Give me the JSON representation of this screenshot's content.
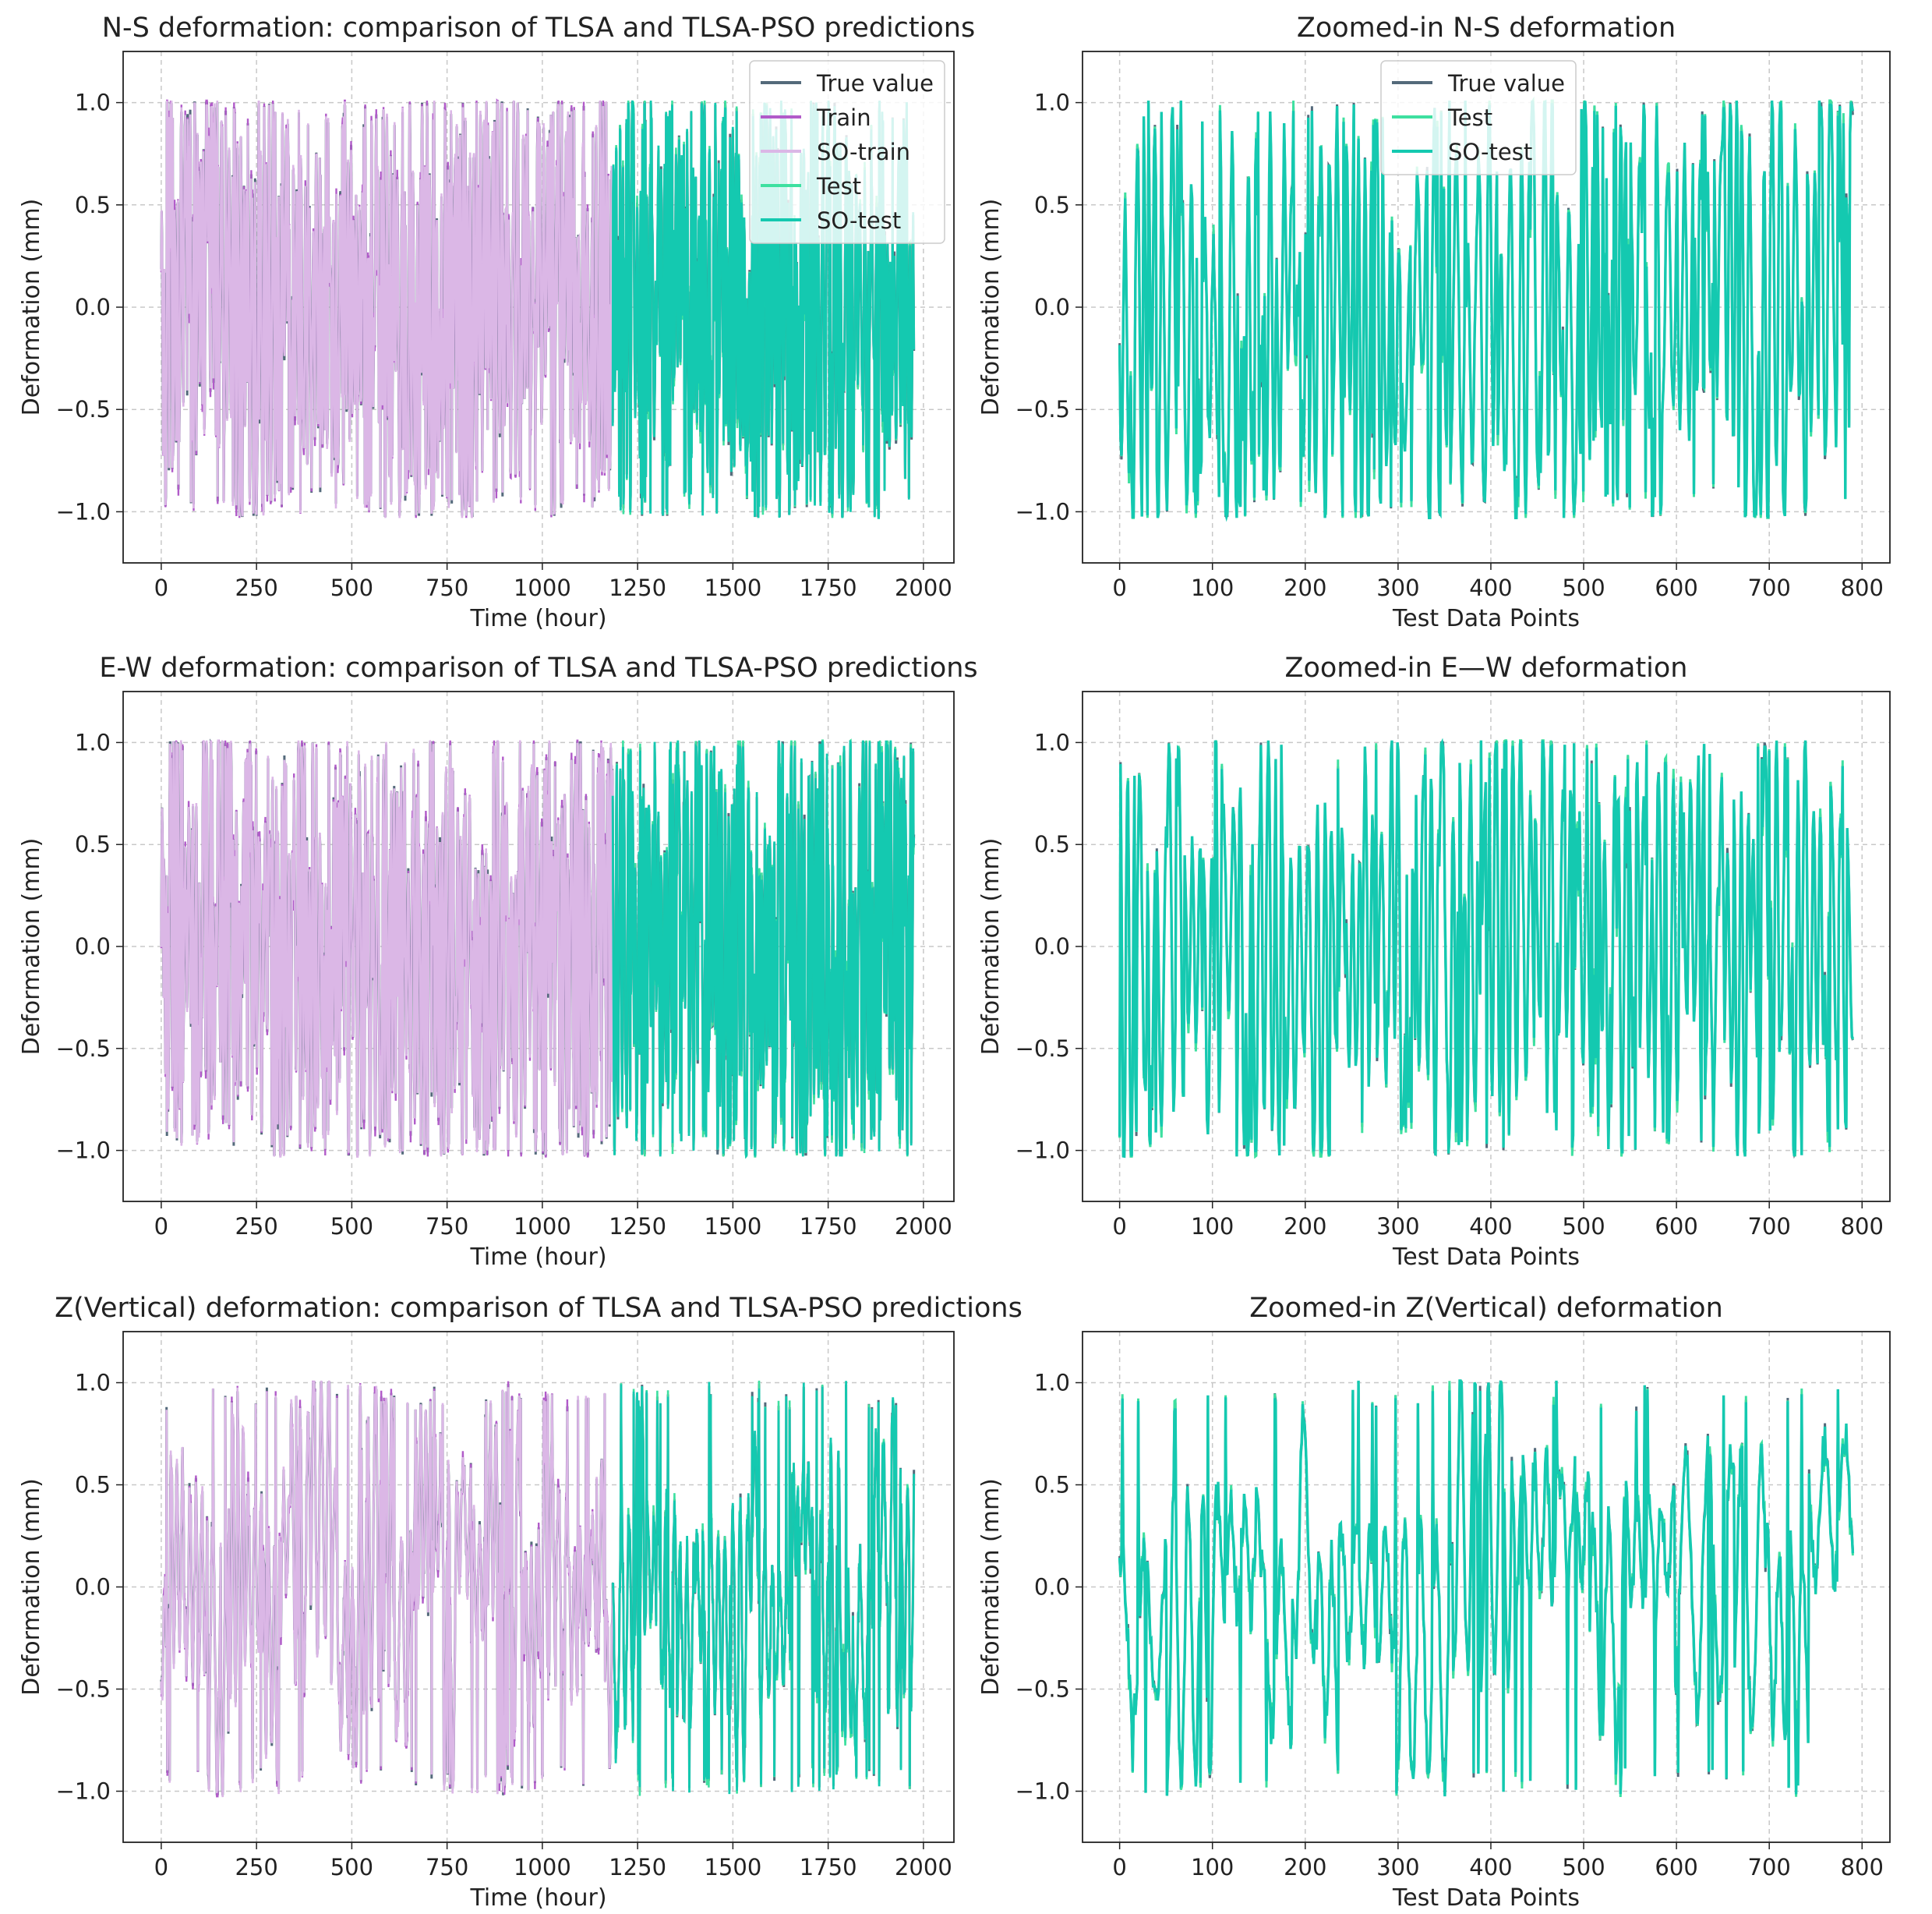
{
  "figure": {
    "description_note": "",
    "colors": {
      "true_value": "#546a7b",
      "train": "#b15bc9",
      "so_train": "#dbb7e6",
      "test": "#3ee0a0",
      "so_test": "#14c9b0",
      "grid": "#c8c8c8",
      "frame": "#222222"
    }
  },
  "chart_data": [
    {
      "type": "line",
      "title": "N-S deformation: comparison of TLSA and TLSA-PSO predictions",
      "xlabel": "Time (hour)",
      "ylabel": "Deformation (mm)",
      "xlim": [
        -100,
        2080
      ],
      "ylim": [
        -1.25,
        1.25
      ],
      "xticks": [
        0,
        250,
        500,
        750,
        1000,
        1250,
        1500,
        1750,
        2000
      ],
      "xtick_labels": [
        "0",
        "250",
        "500",
        "750",
        "1000",
        "1250",
        "1500",
        "1750",
        "2000"
      ],
      "yticks": [
        1.0,
        0.5,
        0.0,
        -0.5,
        -1.0
      ],
      "ytick_labels": [
        "1.0",
        "0.5",
        "0.0",
        "−0.5",
        "−1.0"
      ],
      "grid": true,
      "legend": {
        "placement": "top-right",
        "entries": [
          "True value",
          "Train",
          "SO-train",
          "Test",
          "SO-test"
        ]
      },
      "x_range": [
        0,
        1975
      ],
      "train_end": 1185,
      "n_points": 1975,
      "series_note": "Normalized hourly deformation oscillating between -1.0 and 1.0; Train/SO-train over 0-1185, Test/SO-test over 1185-1975",
      "seed": 11,
      "style": "ns"
    },
    {
      "type": "line",
      "title": "Zoomed-in N-S deformation",
      "xlabel": "Test Data Points",
      "ylabel": "Deformation (mm)",
      "xlim": [
        -40,
        830
      ],
      "ylim": [
        -1.25,
        1.25
      ],
      "xticks": [
        0,
        100,
        200,
        300,
        400,
        500,
        600,
        700,
        800
      ],
      "xtick_labels": [
        "0",
        "100",
        "200",
        "300",
        "400",
        "500",
        "600",
        "700",
        "800"
      ],
      "yticks": [
        1.0,
        0.5,
        0.0,
        -0.5,
        -1.0
      ],
      "ytick_labels": [
        "1.0",
        "0.5",
        "0.0",
        "−0.5",
        "−1.0"
      ],
      "grid": true,
      "legend": {
        "placement": "top-center",
        "entries": [
          "True value",
          "Test",
          "SO-test"
        ]
      },
      "x_range": [
        0,
        790
      ],
      "n_points": 790,
      "seed": 23,
      "style": "ns"
    },
    {
      "type": "line",
      "title": "E-W deformation: comparison of TLSA and TLSA-PSO predictions",
      "xlabel": "Time (hour)",
      "ylabel": "Deformation (mm)",
      "xlim": [
        -100,
        2080
      ],
      "ylim": [
        -1.25,
        1.25
      ],
      "xticks": [
        0,
        250,
        500,
        750,
        1000,
        1250,
        1500,
        1750,
        2000
      ],
      "xtick_labels": [
        "0",
        "250",
        "500",
        "750",
        "1000",
        "1250",
        "1500",
        "1750",
        "2000"
      ],
      "yticks": [
        1.0,
        0.5,
        0.0,
        -0.5,
        -1.0
      ],
      "ytick_labels": [
        "1.0",
        "0.5",
        "0.0",
        "−0.5",
        "−1.0"
      ],
      "grid": true,
      "legend": null,
      "x_range": [
        0,
        1975
      ],
      "train_end": 1185,
      "n_points": 1975,
      "seed": 37,
      "style": "ew"
    },
    {
      "type": "line",
      "title": "Zoomed-in E—W deformation",
      "xlabel": "Test Data Points",
      "ylabel": "Deformation (mm)",
      "xlim": [
        -40,
        830
      ],
      "ylim": [
        -1.25,
        1.25
      ],
      "xticks": [
        0,
        100,
        200,
        300,
        400,
        500,
        600,
        700,
        800
      ],
      "xtick_labels": [
        "0",
        "100",
        "200",
        "300",
        "400",
        "500",
        "600",
        "700",
        "800"
      ],
      "yticks": [
        1.0,
        0.5,
        0.0,
        -0.5,
        -1.0
      ],
      "ytick_labels": [
        "1.0",
        "0.5",
        "0.0",
        "−0.5",
        "−1.0"
      ],
      "grid": true,
      "legend": null,
      "x_range": [
        0,
        790
      ],
      "n_points": 790,
      "seed": 41,
      "style": "ew"
    },
    {
      "type": "line",
      "title": "Z(Vertical) deformation: comparison of TLSA and TLSA-PSO predictions",
      "xlabel": "Time (hour)",
      "ylabel": "Deformation (mm)",
      "xlim": [
        -100,
        2080
      ],
      "ylim": [
        -1.25,
        1.25
      ],
      "xticks": [
        0,
        250,
        500,
        750,
        1000,
        1250,
        1500,
        1750,
        2000
      ],
      "xtick_labels": [
        "0",
        "250",
        "500",
        "750",
        "1000",
        "1250",
        "1500",
        "1750",
        "2000"
      ],
      "yticks": [
        1.0,
        0.5,
        0.0,
        -0.5,
        -1.0
      ],
      "ytick_labels": [
        "1.0",
        "0.5",
        "0.0",
        "−0.5",
        "−1.0"
      ],
      "grid": true,
      "legend": null,
      "x_range": [
        0,
        1975
      ],
      "train_end": 1185,
      "n_points": 1975,
      "seed": 53,
      "style": "z"
    },
    {
      "type": "line",
      "title": "Zoomed-in Z(Vertical) deformation",
      "xlabel": "Test Data Points",
      "ylabel": "Deformation (mm)",
      "xlim": [
        -40,
        830
      ],
      "ylim": [
        -1.25,
        1.25
      ],
      "xticks": [
        0,
        100,
        200,
        300,
        400,
        500,
        600,
        700,
        800
      ],
      "xtick_labels": [
        "0",
        "100",
        "200",
        "300",
        "400",
        "500",
        "600",
        "700",
        "800"
      ],
      "yticks": [
        1.0,
        0.5,
        0.0,
        -0.5,
        -1.0
      ],
      "ytick_labels": [
        "1.0",
        "0.5",
        "0.0",
        "−0.5",
        "−1.0"
      ],
      "grid": true,
      "legend": null,
      "x_range": [
        0,
        790
      ],
      "n_points": 790,
      "seed": 67,
      "style": "z"
    }
  ]
}
